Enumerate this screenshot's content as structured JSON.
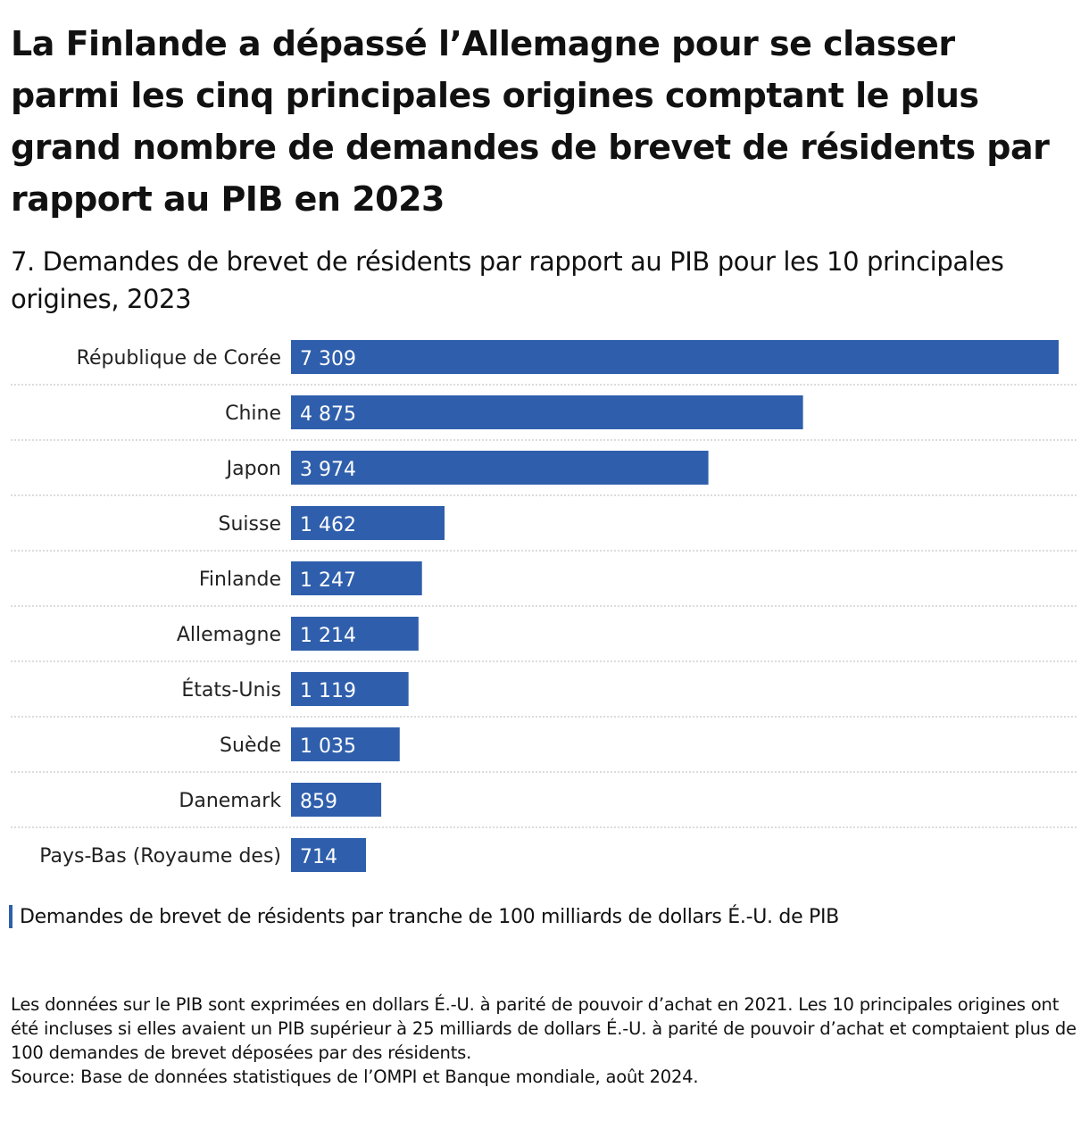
{
  "header": {
    "title": "La Finlande a dépassé l’Allemagne pour se classer parmi les cinq principales origines comptant le plus grand nombre de demandes de brevet de résidents par rapport au PIB en 2023",
    "subtitle": "7. Demandes de brevet de résidents par rapport au PIB pour les 10 principales origines, 2023"
  },
  "legend": {
    "label": "Demandes de brevet de résidents par tranche de 100 milliards de dollars É.-U. de PIB"
  },
  "notes": {
    "note": "Les données sur le PIB sont exprimées en dollars É.-U. à parité de pouvoir d’achat en 2021. Les 10 principales origines ont été incluses si elles avaient un PIB supérieur à 25 milliards de dollars É.-U. à parité de pouvoir d’achat et comptaient plus de 100 demandes de brevet déposées par des résidents.",
    "source": "Source: Base de données statistiques de l’OMPI et Banque mondiale, août 2024."
  },
  "chart_data": {
    "type": "bar",
    "orientation": "horizontal",
    "categories": [
      "République de Corée",
      "Chine",
      "Japon",
      "Suisse",
      "Finlande",
      "Allemagne",
      "États-Unis",
      "Suède",
      "Danemark",
      "Pays-Bas (Royaume des)"
    ],
    "values": [
      7309,
      4875,
      3974,
      1462,
      1247,
      1214,
      1119,
      1035,
      859,
      714
    ],
    "value_labels": [
      "7 309",
      "4 875",
      "3 974",
      "1 462",
      "1 247",
      "1 214",
      "1 119",
      "1 035",
      "859",
      "714"
    ],
    "xlim": [
      0,
      7309
    ],
    "bar_color": "#2f5fac",
    "grid": false,
    "legend_position": "bottom-left"
  }
}
